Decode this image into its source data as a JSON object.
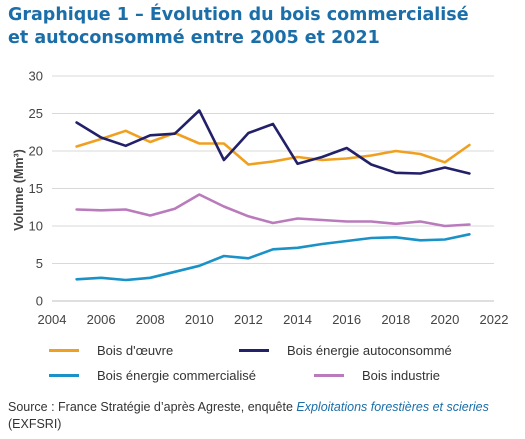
{
  "title": {
    "line1": "Graphique 1 – Évolution du bois commercialisé",
    "line2": "et autoconsommé entre 2005 et 2021"
  },
  "source": {
    "prefix": "Source : France Stratégie d’après Agreste, enquête",
    "italic": "Exploitations forestières et scieries",
    "suffix": "(EXFSRI)"
  },
  "chart_data": {
    "type": "line",
    "ylabel": "Volume (Mm³)",
    "xlabel": "",
    "xlim": [
      2004,
      2022
    ],
    "ylim": [
      0,
      30
    ],
    "xticks": [
      2004,
      2006,
      2008,
      2010,
      2012,
      2014,
      2016,
      2018,
      2020,
      2022
    ],
    "yticks": [
      0,
      5,
      10,
      15,
      20,
      25,
      30
    ],
    "grid": true,
    "legend_position": "bottom",
    "x": [
      2005,
      2006,
      2007,
      2008,
      2009,
      2010,
      2011,
      2012,
      2013,
      2014,
      2015,
      2016,
      2017,
      2018,
      2019,
      2020,
      2021
    ],
    "series": [
      {
        "name": "Bois d'œuvre",
        "color": "#f0a020",
        "values": [
          20.6,
          21.6,
          22.7,
          21.2,
          22.4,
          21.0,
          21.0,
          18.2,
          18.6,
          19.2,
          18.8,
          19.0,
          19.4,
          20.0,
          19.6,
          18.5,
          20.8
        ]
      },
      {
        "name": "Bois énergie autoconsommé",
        "color": "#23206a",
        "values": [
          23.8,
          21.8,
          20.7,
          22.1,
          22.3,
          25.4,
          18.8,
          22.4,
          23.6,
          18.3,
          19.2,
          20.4,
          18.2,
          17.1,
          17.0,
          17.8,
          17.0
        ]
      },
      {
        "name": "Bois énergie commercialisé",
        "color": "#1a92c7",
        "values": [
          2.9,
          3.1,
          2.8,
          3.1,
          3.9,
          4.7,
          6.0,
          5.7,
          6.9,
          7.1,
          7.6,
          8.0,
          8.4,
          8.5,
          8.1,
          8.2,
          8.9
        ]
      },
      {
        "name": "Bois industrie",
        "color": "#b97bbc",
        "values": [
          12.2,
          12.1,
          12.2,
          11.4,
          12.3,
          14.2,
          12.6,
          11.3,
          10.4,
          11.0,
          10.8,
          10.6,
          10.6,
          10.3,
          10.6,
          10.0,
          10.2
        ]
      }
    ]
  }
}
